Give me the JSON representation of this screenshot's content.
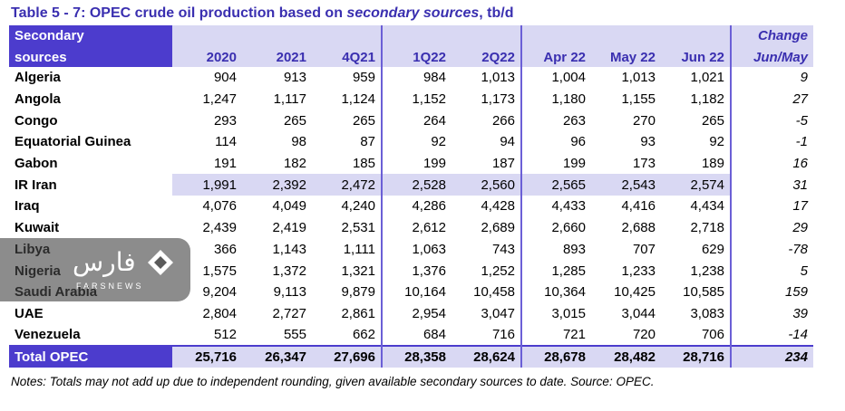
{
  "title": {
    "prefix": "Table 5 - 7: OPEC crude oil production based on ",
    "italic": "secondary sources",
    "suffix": ", tb/d"
  },
  "header": {
    "name_line1": "Secondary",
    "name_line2": "sources",
    "columns": [
      "2020",
      "2021",
      "4Q21",
      "1Q22",
      "2Q22",
      "Apr 22",
      "May 22",
      "Jun 22"
    ],
    "change_line1": "Change",
    "change_line2": "Jun/May"
  },
  "rows": [
    {
      "name": "Algeria",
      "values": [
        "904",
        "913",
        "959",
        "984",
        "1,013",
        "1,004",
        "1,013",
        "1,021"
      ],
      "change": "9"
    },
    {
      "name": "Angola",
      "values": [
        "1,247",
        "1,117",
        "1,124",
        "1,152",
        "1,173",
        "1,180",
        "1,155",
        "1,182"
      ],
      "change": "27"
    },
    {
      "name": "Congo",
      "values": [
        "293",
        "265",
        "265",
        "264",
        "266",
        "263",
        "270",
        "265"
      ],
      "change": "-5"
    },
    {
      "name": "Equatorial Guinea",
      "values": [
        "114",
        "98",
        "87",
        "92",
        "94",
        "96",
        "93",
        "92"
      ],
      "change": "-1"
    },
    {
      "name": "Gabon",
      "values": [
        "191",
        "182",
        "185",
        "199",
        "187",
        "199",
        "173",
        "189"
      ],
      "change": "16"
    },
    {
      "name": "IR Iran",
      "values": [
        "1,991",
        "2,392",
        "2,472",
        "2,528",
        "2,560",
        "2,565",
        "2,543",
        "2,574"
      ],
      "change": "31"
    },
    {
      "name": "Iraq",
      "values": [
        "4,076",
        "4,049",
        "4,240",
        "4,286",
        "4,428",
        "4,433",
        "4,416",
        "4,434"
      ],
      "change": "17"
    },
    {
      "name": "Kuwait",
      "values": [
        "2,439",
        "2,419",
        "2,531",
        "2,612",
        "2,689",
        "2,660",
        "2,688",
        "2,718"
      ],
      "change": "29"
    },
    {
      "name": "Libya",
      "values": [
        "366",
        "1,143",
        "1,111",
        "1,063",
        "743",
        "893",
        "707",
        "629"
      ],
      "change": "-78"
    },
    {
      "name": "Nigeria",
      "values": [
        "1,575",
        "1,372",
        "1,321",
        "1,376",
        "1,252",
        "1,285",
        "1,233",
        "1,238"
      ],
      "change": "5"
    },
    {
      "name": "Saudi Arabia",
      "values": [
        "9,204",
        "9,113",
        "9,879",
        "10,164",
        "10,458",
        "10,364",
        "10,425",
        "10,585"
      ],
      "change": "159"
    },
    {
      "name": "UAE",
      "values": [
        "2,804",
        "2,727",
        "2,861",
        "2,954",
        "3,047",
        "3,015",
        "3,044",
        "3,083"
      ],
      "change": "39"
    },
    {
      "name": "Venezuela",
      "values": [
        "512",
        "555",
        "662",
        "684",
        "716",
        "721",
        "720",
        "706"
      ],
      "change": "-14"
    }
  ],
  "total": {
    "name": "Total  OPEC",
    "values": [
      "25,716",
      "26,347",
      "27,696",
      "28,358",
      "28,624",
      "28,678",
      "28,482",
      "28,716"
    ],
    "change": "234"
  },
  "notes": "Notes: Totals may not add up due to independent rounding, given available secondary sources to date. Source: OPEC.",
  "watermark": {
    "main": "فارس",
    "sub": "FARSNEWS"
  },
  "colors": {
    "accent": "#4c3ccd",
    "header_bg": "#d9d8f3",
    "title": "#3a2fb0"
  }
}
